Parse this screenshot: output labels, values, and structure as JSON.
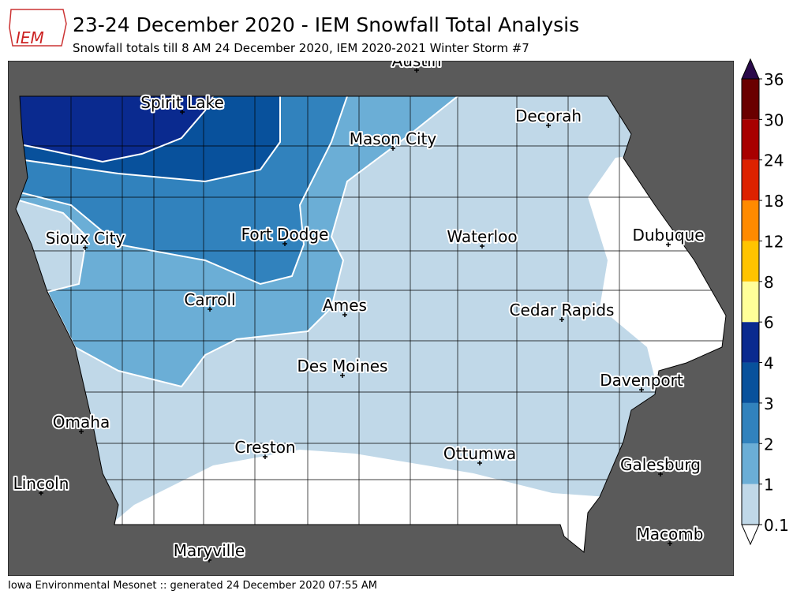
{
  "header": {
    "logo_text": "IEM",
    "title": "23-24 December 2020 - IEM Snowfall Total Analysis",
    "subtitle": "Snowfall totals till 8 AM 24 December 2020, IEM 2020-2021 Winter Storm #7"
  },
  "map": {
    "cities": [
      "Austin",
      "Spirit Lake",
      "Decorah",
      "Mason City",
      "Sioux City",
      "Fort Dodge",
      "Waterloo",
      "Dubuque",
      "Carroll",
      "Ames",
      "Cedar Rapids",
      "Des Moines",
      "Davenport",
      "Omaha",
      "Creston",
      "Ottumwa",
      "Galesburg",
      "Lincoln",
      "Macomb",
      "Maryville"
    ]
  },
  "colorbar": {
    "ticks": [
      0.1,
      1,
      2,
      3,
      4,
      6,
      8,
      12,
      18,
      24,
      30,
      36
    ],
    "colors": [
      "#c0d8e8",
      "#6baed6",
      "#3182bd",
      "#08519c",
      "#0a2a8f",
      "#ffff99",
      "#ffc400",
      "#ff8a00",
      "#dd2200",
      "#a80000",
      "#6a0000"
    ],
    "over_color": "#2a0a4a",
    "under_color": "#ffffff"
  },
  "footer": "Iowa Environmental Mesonet :: generated 24 December 2020 07:55 AM"
}
